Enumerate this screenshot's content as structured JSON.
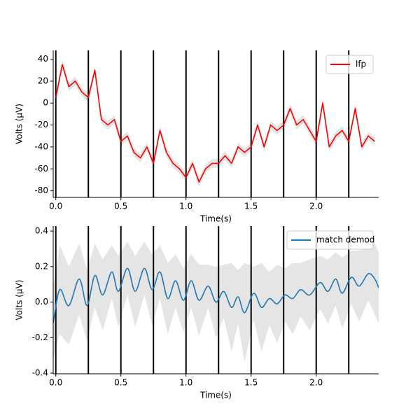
{
  "chart_data": [
    {
      "type": "line",
      "xlabel": "Time(s)",
      "ylabel": "Volts (μV)",
      "x": [
        0,
        0.05,
        0.1,
        0.15,
        0.2,
        0.25,
        0.3,
        0.35,
        0.4,
        0.45,
        0.5,
        0.55,
        0.6,
        0.65,
        0.7,
        0.75,
        0.8,
        0.85,
        0.9,
        0.95,
        1.0,
        1.05,
        1.1,
        1.15,
        1.2,
        1.25,
        1.3,
        1.35,
        1.4,
        1.45,
        1.5,
        1.55,
        1.6,
        1.65,
        1.7,
        1.75,
        1.8,
        1.85,
        1.9,
        1.95,
        2.0,
        2.05,
        2.1,
        2.15,
        2.2,
        2.25,
        2.3,
        2.35,
        2.4,
        2.45
      ],
      "series": [
        {
          "name": "lfp",
          "color": "#ff0000",
          "band_color": "#d3d3d3",
          "values": [
            5,
            35,
            15,
            20,
            10,
            5,
            30,
            -15,
            -20,
            -15,
            -35,
            -30,
            -45,
            -50,
            -40,
            -55,
            -25,
            -45,
            -55,
            -60,
            -68,
            -55,
            -72,
            -60,
            -55,
            -55,
            -48,
            -55,
            -40,
            -45,
            -40,
            -20,
            -40,
            -20,
            -25,
            -20,
            -5,
            -20,
            -15,
            -25,
            -35,
            0,
            -40,
            -30,
            -25,
            -35,
            -5,
            -40,
            -30,
            -35
          ],
          "errors": [
            4,
            4,
            4,
            4,
            4,
            4,
            4,
            4,
            4,
            4,
            4,
            4,
            4,
            4,
            4,
            4,
            4,
            4,
            4,
            4,
            4,
            4,
            4,
            4,
            4,
            4,
            4,
            4,
            4,
            4,
            4,
            4,
            4,
            4,
            4,
            4,
            4,
            4,
            4,
            4,
            4,
            4,
            4,
            4,
            4,
            4,
            4,
            4,
            4,
            4
          ]
        }
      ],
      "vlines": [
        0,
        0.25,
        0.5,
        0.75,
        1.0,
        1.25,
        1.5,
        1.75,
        2.0,
        2.25
      ],
      "vline_color": "#000000",
      "xlim": [
        -0.02,
        2.48
      ],
      "xticks": [
        {
          "value": 0,
          "label": "0.0"
        },
        0.5,
        {
          "value": 1,
          "label": "1.0"
        },
        1.5,
        {
          "value": 2,
          "label": "2.0"
        }
      ],
      "ylim": [
        -86,
        48
      ],
      "yticks": [
        40,
        20,
        0,
        -20,
        -40,
        -60,
        -80
      ],
      "smooth": false,
      "grid": false,
      "legend": "upper right"
    },
    {
      "type": "line",
      "xlabel": "Time(s)",
      "ylabel": "Volts (μV)",
      "x": [
        -0.02,
        0.03,
        0.1,
        0.18,
        0.24,
        0.3,
        0.36,
        0.43,
        0.48,
        0.55,
        0.61,
        0.68,
        0.74,
        0.8,
        0.86,
        0.92,
        0.98,
        1.04,
        1.1,
        1.17,
        1.23,
        1.29,
        1.35,
        1.4,
        1.45,
        1.52,
        1.58,
        1.64,
        1.7,
        1.76,
        1.82,
        1.88,
        1.95,
        2.03,
        2.09,
        2.15,
        2.2,
        2.27,
        2.33,
        2.4,
        2.45,
        2.48
      ],
      "series": [
        {
          "name": "match demod",
          "color": "#1f77b4",
          "band_color": "#d3d3d3",
          "values": [
            -0.12,
            0.07,
            -0.02,
            0.13,
            -0.02,
            0.15,
            0.04,
            0.17,
            0.06,
            0.19,
            0.06,
            0.19,
            0.07,
            0.17,
            0.02,
            0.12,
            0.01,
            0.12,
            0.01,
            0.09,
            0.0,
            0.06,
            -0.03,
            0.03,
            -0.06,
            0.05,
            -0.03,
            0.02,
            -0.01,
            0.04,
            0.02,
            0.07,
            0.04,
            0.11,
            0.06,
            0.13,
            0.05,
            0.14,
            0.09,
            0.16,
            0.13,
            0.08
          ],
          "errors": [
            0.2,
            0.25,
            0.22,
            0.2,
            0.2,
            0.18,
            0.2,
            0.15,
            0.2,
            0.15,
            0.2,
            0.15,
            0.2,
            0.15,
            0.2,
            0.15,
            0.18,
            0.15,
            0.2,
            0.12,
            0.2,
            0.15,
            0.25,
            0.15,
            0.28,
            0.15,
            0.25,
            0.15,
            0.22,
            0.15,
            0.2,
            0.15,
            0.2,
            0.15,
            0.18,
            0.15,
            0.2,
            0.15,
            0.2,
            0.15,
            0.2,
            0.2
          ]
        }
      ],
      "vlines": [
        0,
        0.25,
        0.5,
        0.75,
        1.0,
        1.25,
        1.5,
        1.75,
        2.0,
        2.25
      ],
      "vline_color": "#000000",
      "xlim": [
        -0.02,
        2.48
      ],
      "xticks": [
        {
          "value": 0,
          "label": "0.0"
        },
        0.5,
        {
          "value": 1,
          "label": "1.0"
        },
        1.5,
        {
          "value": 2,
          "label": "2.0"
        }
      ],
      "ylim": [
        -0.404,
        0.428
      ],
      "yticks": [
        0.4,
        0.2,
        {
          "value": 0,
          "label": "0.0"
        },
        -0.2,
        -0.4
      ],
      "smooth": true,
      "grid": false,
      "legend": "upper right"
    }
  ]
}
